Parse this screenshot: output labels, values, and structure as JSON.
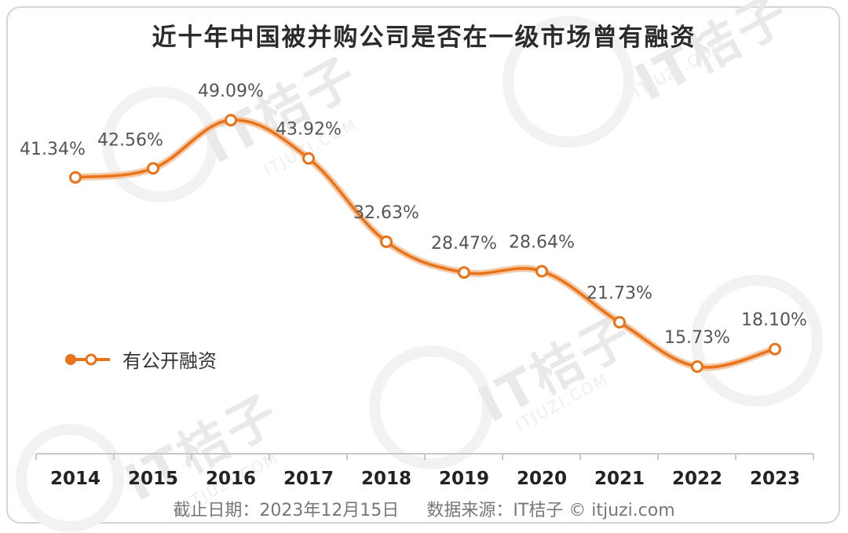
{
  "title": "近十年中国被并购公司是否在一级市场曾有融资",
  "watermark": {
    "brand": "IT桔子",
    "url": "ITJUZI.COM"
  },
  "legend": {
    "label": "有公开融资",
    "color": "#e8731a"
  },
  "footer": {
    "date": "截止日期：2023年12月15日",
    "source": "数据来源：IT桔子 © itjuzi.com"
  },
  "chart_data": {
    "type": "line",
    "title": "近十年中国被并购公司是否在一级市场曾有融资",
    "categories": [
      "2014",
      "2015",
      "2016",
      "2017",
      "2018",
      "2019",
      "2020",
      "2021",
      "2022",
      "2023"
    ],
    "series": [
      {
        "name": "有公开融资",
        "values": [
          41.34,
          42.56,
          49.09,
          43.92,
          32.63,
          28.47,
          28.64,
          21.73,
          15.73,
          18.1
        ],
        "labels": [
          "41.34%",
          "42.56%",
          "49.09%",
          "43.92%",
          "32.63%",
          "28.47%",
          "28.64%",
          "21.73%",
          "15.73%",
          "18.10%"
        ]
      }
    ],
    "line_color": "#e8731a",
    "grid": false,
    "legend_position": "left-middle",
    "xlabel": "",
    "ylabel": ""
  }
}
